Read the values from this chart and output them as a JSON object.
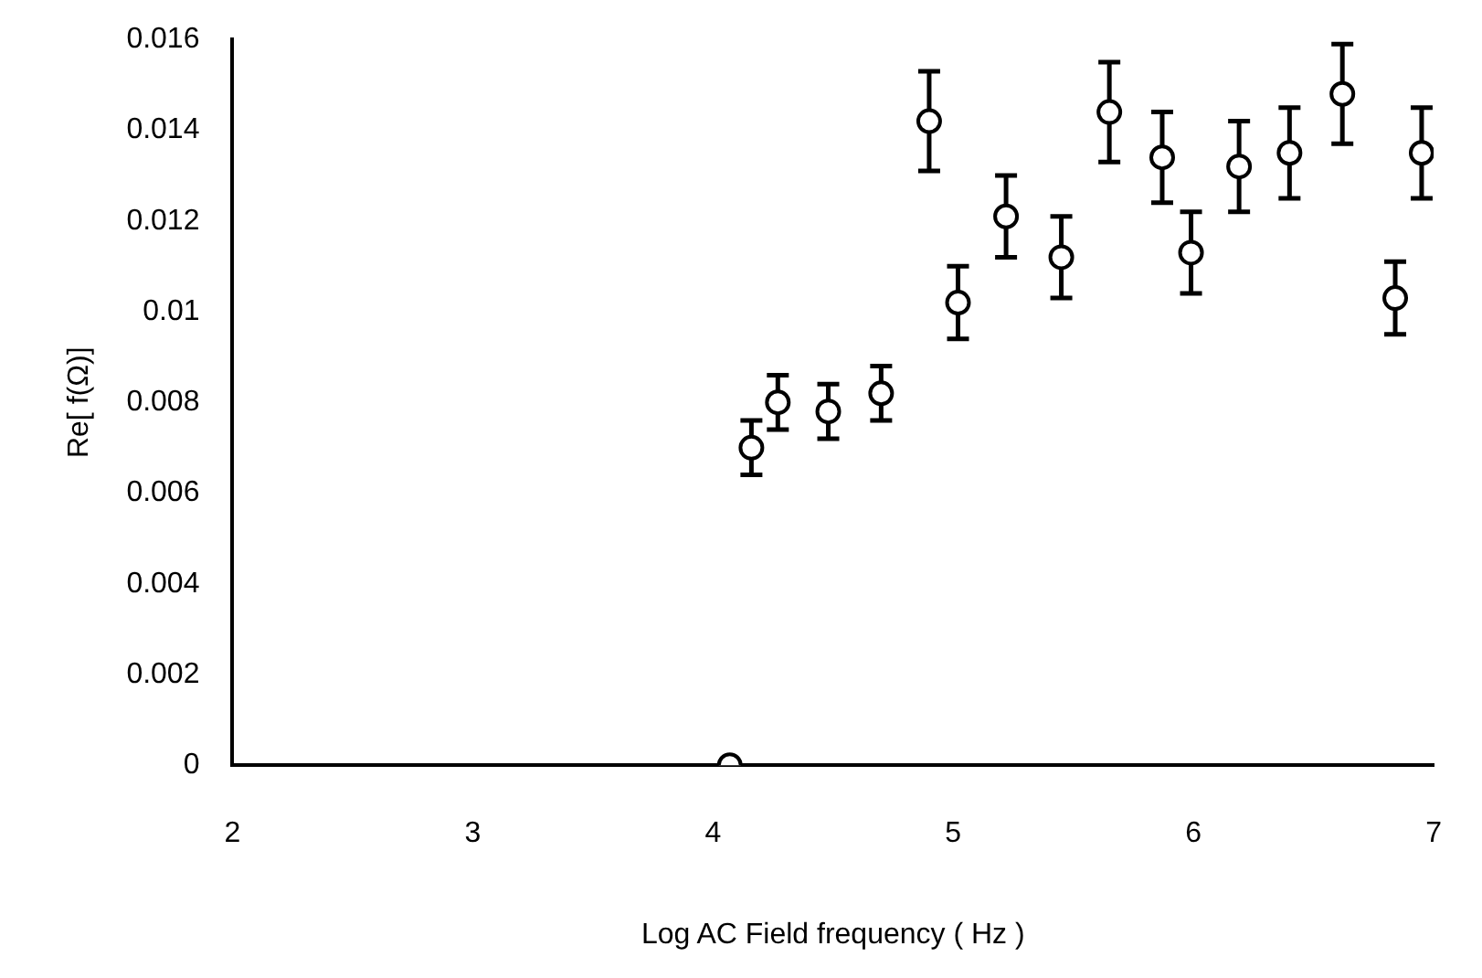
{
  "chart_data": {
    "type": "scatter",
    "xlabel": "Log AC Field frequency ( Hz )",
    "ylabel": "Re[ f(Ω)]",
    "x": [
      4.07,
      4.16,
      4.27,
      4.48,
      4.7,
      4.9,
      5.02,
      5.22,
      5.45,
      5.65,
      5.87,
      5.99,
      6.19,
      6.4,
      6.62,
      6.84,
      6.95
    ],
    "values": [
      0,
      0.007,
      0.008,
      0.0078,
      0.0082,
      0.0142,
      0.0102,
      0.0121,
      0.0112,
      0.0144,
      0.0134,
      0.0113,
      0.0132,
      0.0135,
      0.0148,
      0.0103,
      0.0135
    ],
    "errors": [
      null,
      0.0006,
      0.0006,
      0.0006,
      0.0006,
      0.0011,
      0.0008,
      0.0009,
      0.0009,
      0.0011,
      0.001,
      0.0009,
      0.001,
      0.001,
      0.0011,
      0.0008,
      0.001
    ],
    "color": "#000000",
    "marker": "circle",
    "grid": false,
    "legend": false,
    "xlim": [
      2,
      7
    ],
    "xticks": [
      2,
      3,
      4,
      5,
      6,
      7
    ],
    "ylim": [
      0,
      0.016
    ],
    "yticks": [
      0,
      0.002,
      0.004,
      0.006,
      0.008,
      {
        "value": 0.01,
        "label": "0.01"
      },
      0.012,
      0.014,
      0.016
    ]
  }
}
